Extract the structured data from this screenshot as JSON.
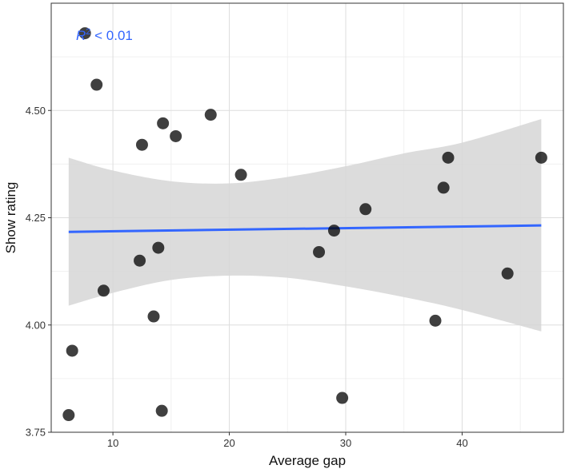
{
  "chart_data": {
    "type": "scatter",
    "xlabel": "Average gap",
    "ylabel": "Show rating",
    "xlim": [
      4.7,
      48.7
    ],
    "ylim": [
      3.75,
      4.75
    ],
    "x_ticks": [
      10,
      20,
      30,
      40
    ],
    "x_minor_ticks": [
      15,
      25,
      35,
      45
    ],
    "y_ticks": [
      3.75,
      4.0,
      4.25,
      4.5
    ],
    "y_tick_labels": [
      "3.75",
      "4.00",
      "4.25",
      "4.50"
    ],
    "grid": true,
    "point_color": "#000000",
    "points": [
      {
        "x": 6.2,
        "y": 3.79
      },
      {
        "x": 6.5,
        "y": 3.94
      },
      {
        "x": 7.6,
        "y": 4.68
      },
      {
        "x": 8.6,
        "y": 4.56
      },
      {
        "x": 9.2,
        "y": 4.08
      },
      {
        "x": 12.3,
        "y": 4.15
      },
      {
        "x": 12.5,
        "y": 4.42
      },
      {
        "x": 13.5,
        "y": 4.02
      },
      {
        "x": 13.9,
        "y": 4.18
      },
      {
        "x": 14.2,
        "y": 3.8
      },
      {
        "x": 14.3,
        "y": 4.47
      },
      {
        "x": 15.4,
        "y": 4.44
      },
      {
        "x": 18.4,
        "y": 4.49
      },
      {
        "x": 21.0,
        "y": 4.35
      },
      {
        "x": 27.7,
        "y": 4.17
      },
      {
        "x": 29.0,
        "y": 4.22
      },
      {
        "x": 29.7,
        "y": 3.83
      },
      {
        "x": 31.7,
        "y": 4.27
      },
      {
        "x": 37.7,
        "y": 4.01
      },
      {
        "x": 38.4,
        "y": 4.32
      },
      {
        "x": 38.8,
        "y": 4.39
      },
      {
        "x": 43.9,
        "y": 4.12
      },
      {
        "x": 46.8,
        "y": 4.39
      }
    ],
    "fit_line": {
      "color": "#3366FF",
      "x": [
        6.2,
        46.8
      ],
      "y": [
        4.217,
        4.232
      ]
    },
    "confidence_band": {
      "color": "#d6d6d6",
      "x": [
        6.2,
        10,
        15,
        20,
        25,
        30,
        35,
        40,
        46.8
      ],
      "lower": [
        4.045,
        4.075,
        4.105,
        4.115,
        4.11,
        4.09,
        4.065,
        4.035,
        3.985
      ],
      "upper": [
        4.39,
        4.36,
        4.335,
        4.33,
        4.345,
        4.37,
        4.4,
        4.425,
        4.48
      ]
    },
    "annotation": {
      "r_symbol": "R",
      "superscript": "2",
      "suffix": " < 0.01",
      "color": "#3366FF"
    }
  }
}
